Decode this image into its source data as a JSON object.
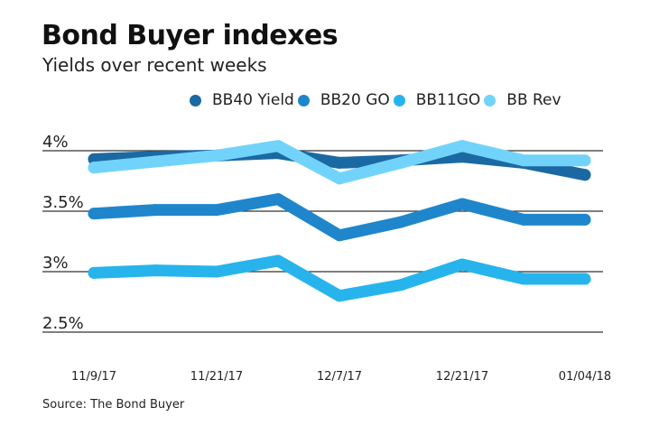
{
  "chart_data": {
    "type": "line",
    "title": "Bond Buyer indexes",
    "subtitle": "Yields over recent weeks",
    "source": "Source: The Bond Buyer",
    "x_tick_labels": [
      "11/9/17",
      "",
      "11/21/17",
      "",
      "12/7/17",
      "",
      "12/21/17",
      "",
      "01/04/18"
    ],
    "y_ticks": [
      {
        "value": 4.0,
        "label": "4%"
      },
      {
        "value": 3.5,
        "label": "3.5%"
      },
      {
        "value": 3.0,
        "label": "3%"
      },
      {
        "value": 2.5,
        "label": "2.5%"
      }
    ],
    "ylim": [
      2.5,
      4.0
    ],
    "grid": true,
    "legend_position": "top",
    "series": [
      {
        "name": "BB40 Yield",
        "color": "#1b69a3",
        "values": [
          3.93,
          3.95,
          3.96,
          3.98,
          3.9,
          3.92,
          3.95,
          3.9,
          3.8
        ]
      },
      {
        "name": "BB20 GO",
        "color": "#1f86cc",
        "values": [
          3.48,
          3.51,
          3.51,
          3.6,
          3.3,
          3.41,
          3.56,
          3.43,
          3.43
        ]
      },
      {
        "name": "BB11GO",
        "color": "#27b4ec",
        "values": [
          2.99,
          3.01,
          3.0,
          3.09,
          2.8,
          2.89,
          3.06,
          2.94,
          2.94
        ]
      },
      {
        "name": "BB Rev",
        "color": "#72d3fa",
        "values": [
          3.86,
          3.91,
          3.96,
          4.04,
          3.77,
          3.9,
          4.04,
          3.92,
          3.92
        ]
      }
    ]
  }
}
